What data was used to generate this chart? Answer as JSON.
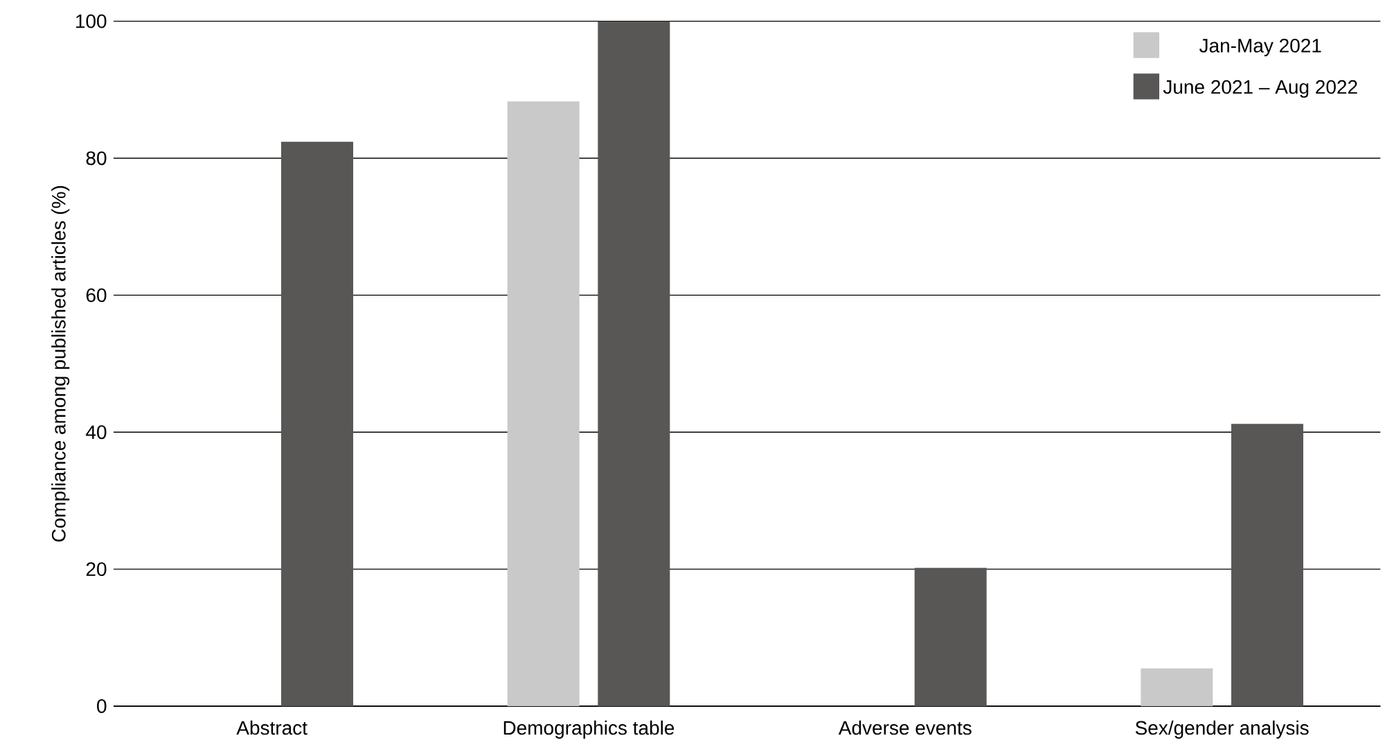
{
  "chart_data": {
    "type": "bar",
    "ylabel": "Compliance among published articles (%)",
    "categories": [
      "Abstract",
      "Demographics table",
      "Adverse events",
      "Sex/gender analysis"
    ],
    "series": [
      {
        "name": "Jan-May 2021",
        "color": "#c8c9c8",
        "values": [
          0,
          88.3,
          0,
          5.5
        ]
      },
      {
        "name": "June 2021 – Aug 2022",
        "color": "#585756",
        "values": [
          82.4,
          100,
          20.2,
          41.2
        ]
      }
    ],
    "ylim": [
      0,
      100
    ],
    "yticks": [
      0,
      20,
      40,
      60,
      80,
      100
    ],
    "grid": "y",
    "legend": "top right"
  }
}
